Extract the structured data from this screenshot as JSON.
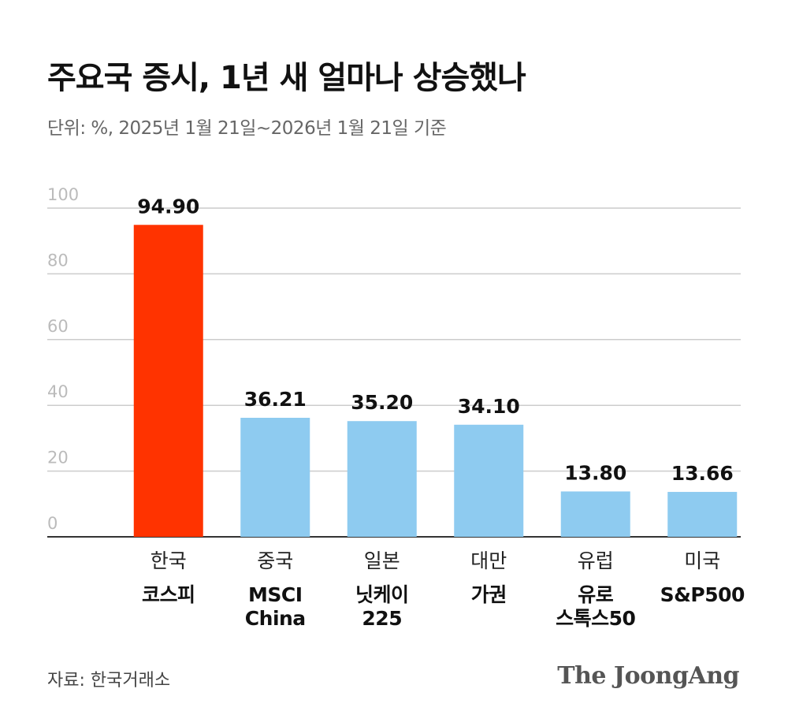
{
  "header": {
    "title": "주요국 증시, 1년 새 얼마나 상승했나",
    "subtitle": "단위: %, 2025년 1월 21일~2026년 1월 21일 기준"
  },
  "chart_data": {
    "type": "bar",
    "categories": [
      "한국",
      "중국",
      "일본",
      "대만",
      "유럽",
      "미국"
    ],
    "index_names": [
      "코스피",
      "MSCI China",
      "닛케이 225",
      "가권",
      "유로 스톡스50",
      "S&P500"
    ],
    "values": [
      94.9,
      36.21,
      35.2,
      34.1,
      13.8,
      13.66
    ],
    "value_labels": [
      "94.90",
      "36.21",
      "35.20",
      "34.10",
      "13.80",
      "13.66"
    ],
    "colors": [
      "#ff3300",
      "#8ecbf0",
      "#8ecbf0",
      "#8ecbf0",
      "#8ecbf0",
      "#8ecbf0"
    ],
    "ylim": [
      0,
      100
    ],
    "yticks": [
      0,
      20,
      40,
      60,
      80,
      100
    ],
    "grid": true
  },
  "footer": {
    "source": "자료: 한국거래소",
    "brand": "The JoongAng"
  }
}
